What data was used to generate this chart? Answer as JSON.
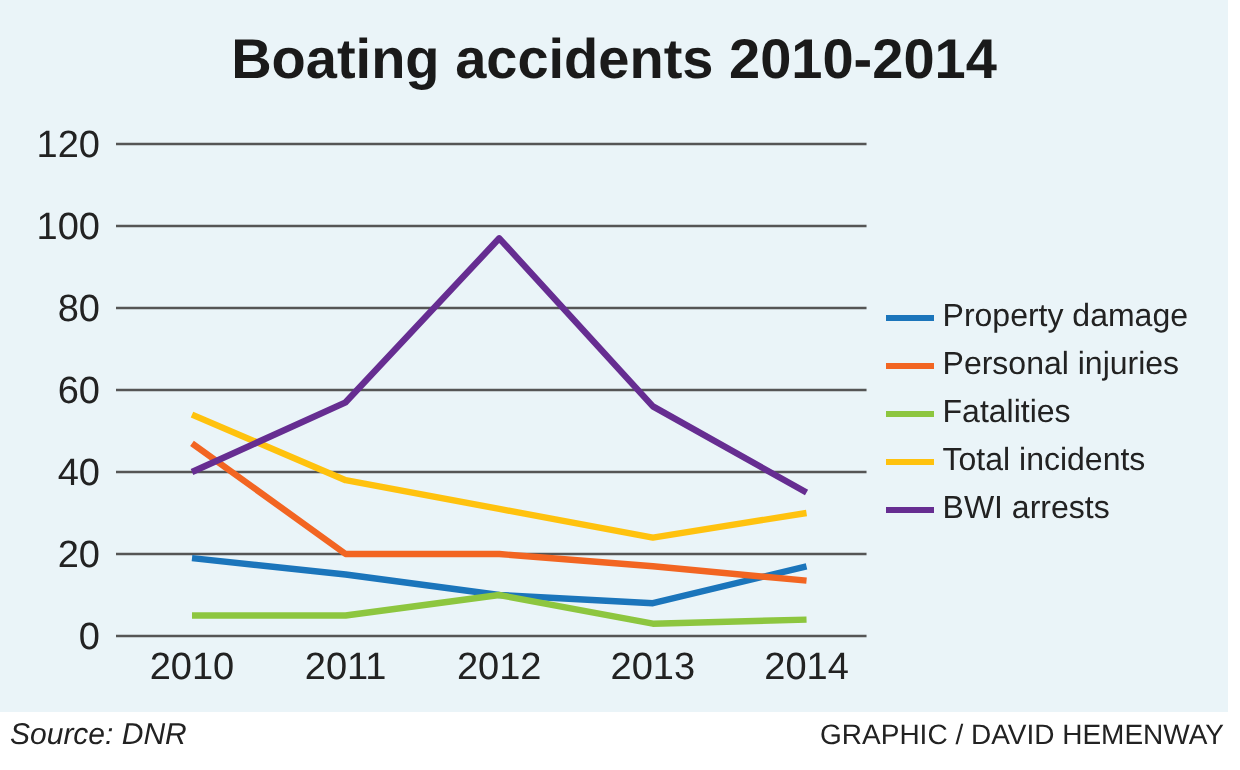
{
  "chart_data": {
    "type": "line",
    "title": "Boating accidents 2010-2014",
    "categories": [
      "2010",
      "2011",
      "2012",
      "2013",
      "2014"
    ],
    "series": [
      {
        "name": "Property damage",
        "color": "#1b75bb",
        "values": [
          19,
          15,
          10,
          8,
          17
        ]
      },
      {
        "name": "Personal injuries",
        "color": "#f26522",
        "values": [
          47,
          20,
          20,
          17,
          13.5
        ]
      },
      {
        "name": "Fatalities",
        "color": "#8dc63f",
        "values": [
          5,
          5,
          10,
          3,
          4
        ]
      },
      {
        "name": "Total incidents",
        "color": "#ffc20e",
        "values": [
          54,
          38,
          31,
          24,
          30
        ]
      },
      {
        "name": "BWI arrests",
        "color": "#662d91",
        "values": [
          40,
          57,
          97,
          56,
          35
        ]
      }
    ],
    "ylim": [
      0,
      120
    ],
    "yticks": [
      0,
      20,
      40,
      60,
      80,
      100,
      120
    ],
    "grid": "y",
    "legend": "right",
    "marker": "none",
    "line_style": "solid",
    "annotations": [
      "Source: DNR",
      "GRAPHIC / DAVID HEMENWAY"
    ]
  }
}
